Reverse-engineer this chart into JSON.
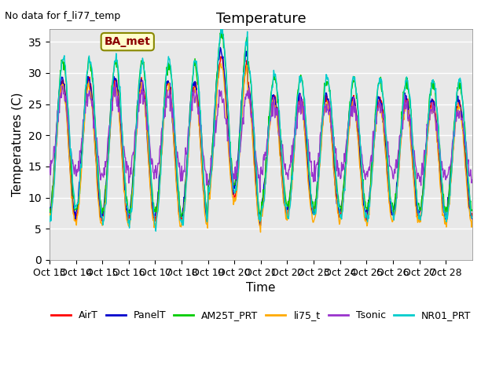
{
  "title": "Temperature",
  "ylabel": "Temperatures (C)",
  "xlabel": "Time",
  "top_left_text": "No data for f_li77_temp",
  "annotation_text": "BA_met",
  "ylim": [
    0,
    37
  ],
  "yticks": [
    0,
    5,
    10,
    15,
    20,
    25,
    30,
    35
  ],
  "xtick_labels": [
    "Oct 13",
    "Oct 14",
    "Oct 15",
    "Oct 16",
    "Oct 17",
    "Oct 18",
    "Oct 19",
    "Oct 20",
    "Oct 21",
    "Oct 22",
    "Oct 23",
    "Oct 24",
    "Oct 25",
    "Oct 26",
    "Oct 27",
    "Oct 28"
  ],
  "legend_labels": [
    "AirT",
    "PanelT",
    "AM25T_PRT",
    "li75_t",
    "Tsonic",
    "NR01_PRT"
  ],
  "legend_colors": [
    "#ff0000",
    "#0000cc",
    "#00cc00",
    "#ffaa00",
    "#9933cc",
    "#00cccc"
  ],
  "background_color": "#e8e8e8",
  "grid_color": "#ffffff",
  "title_fontsize": 13,
  "axis_fontsize": 11,
  "tick_fontsize": 10,
  "num_days": 16,
  "samples_per_day": 48
}
